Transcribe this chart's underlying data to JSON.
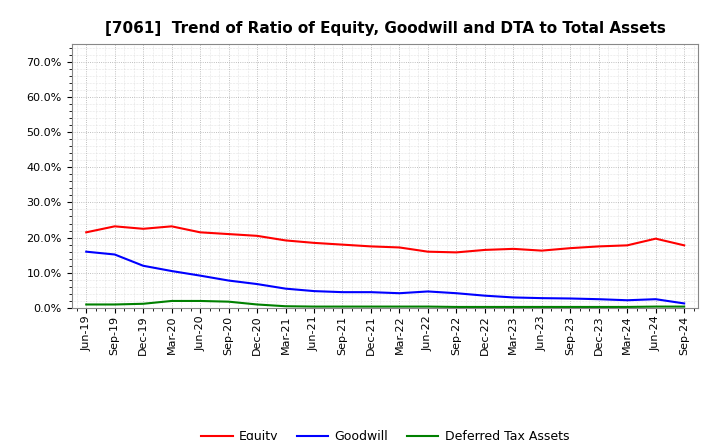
{
  "title": "[7061]  Trend of Ratio of Equity, Goodwill and DTA to Total Assets",
  "x_labels": [
    "Jun-19",
    "Sep-19",
    "Dec-19",
    "Mar-20",
    "Jun-20",
    "Sep-20",
    "Dec-20",
    "Mar-21",
    "Jun-21",
    "Sep-21",
    "Dec-21",
    "Mar-22",
    "Jun-22",
    "Sep-22",
    "Dec-22",
    "Mar-23",
    "Jun-23",
    "Sep-23",
    "Dec-23",
    "Mar-24",
    "Jun-24",
    "Sep-24"
  ],
  "equity": [
    0.215,
    0.232,
    0.225,
    0.232,
    0.215,
    0.21,
    0.205,
    0.192,
    0.185,
    0.18,
    0.175,
    0.172,
    0.16,
    0.158,
    0.165,
    0.168,
    0.163,
    0.17,
    0.175,
    0.178,
    0.197,
    0.178
  ],
  "goodwill": [
    0.16,
    0.152,
    0.12,
    0.105,
    0.092,
    0.078,
    0.068,
    0.055,
    0.048,
    0.045,
    0.045,
    0.042,
    0.047,
    0.042,
    0.035,
    0.03,
    0.028,
    0.027,
    0.025,
    0.022,
    0.025,
    0.013
  ],
  "dta": [
    0.01,
    0.01,
    0.012,
    0.02,
    0.02,
    0.018,
    0.01,
    0.005,
    0.004,
    0.004,
    0.004,
    0.004,
    0.004,
    0.003,
    0.003,
    0.003,
    0.003,
    0.003,
    0.003,
    0.003,
    0.004,
    0.004
  ],
  "equity_color": "#ff0000",
  "goodwill_color": "#0000ff",
  "dta_color": "#008000",
  "ylim": [
    0.0,
    0.75
  ],
  "yticks": [
    0.0,
    0.1,
    0.2,
    0.3,
    0.4,
    0.5,
    0.6,
    0.7
  ],
  "legend_labels": [
    "Equity",
    "Goodwill",
    "Deferred Tax Assets"
  ],
  "background_color": "#ffffff",
  "grid_color": "#aaaaaa",
  "title_fontsize": 11,
  "tick_fontsize": 8,
  "legend_fontsize": 9,
  "linewidth": 1.5
}
